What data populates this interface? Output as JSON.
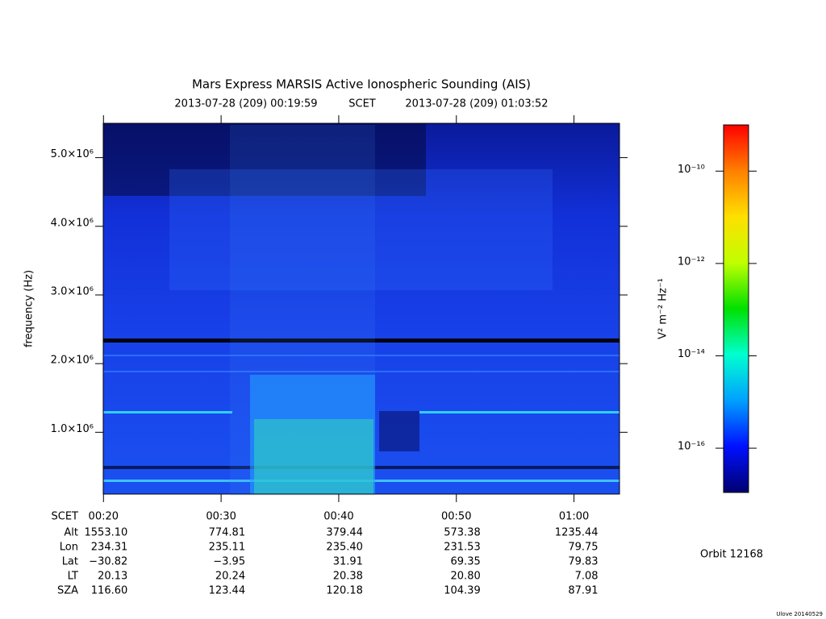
{
  "chart_data": {
    "type": "spectrogram",
    "title": "Mars Express MARSIS Active Ionospheric Sounding (AIS)",
    "subtitle": {
      "start": "2013-07-28 (209) 00:19:59",
      "scale": "SCET",
      "end": "2013-07-28 (209) 01:03:52"
    },
    "y_label": "frequency (Hz)",
    "ylim": [
      100000,
      5500000
    ],
    "yticks": [
      {
        "value": 1000000,
        "label": "1.0×10⁶"
      },
      {
        "value": 2000000,
        "label": "2.0×10⁶"
      },
      {
        "value": 3000000,
        "label": "3.0×10⁶"
      },
      {
        "value": 4000000,
        "label": "4.0×10⁶"
      },
      {
        "value": 5000000,
        "label": "5.0×10⁶"
      }
    ],
    "x_label": "SCET",
    "xlim": [
      19.98,
      63.87
    ],
    "xticks": [
      {
        "value": 20,
        "label": "00:20"
      },
      {
        "value": 30,
        "label": "00:30"
      },
      {
        "value": 40,
        "label": "00:40"
      },
      {
        "value": 50,
        "label": "00:50"
      },
      {
        "value": 60,
        "label": "01:00"
      }
    ],
    "ephemeris": [
      {
        "label": "Alt",
        "values": [
          "1553.10",
          "774.81",
          "379.44",
          "573.38",
          "1235.44"
        ]
      },
      {
        "label": "Lon",
        "values": [
          "234.31",
          "235.11",
          "235.40",
          "231.53",
          "79.75"
        ]
      },
      {
        "label": "Lat",
        "values": [
          "−30.82",
          "−3.95",
          "31.91",
          "69.35",
          "79.83"
        ]
      },
      {
        "label": "LT",
        "values": [
          "20.13",
          "20.24",
          "20.38",
          "20.80",
          "7.08"
        ]
      },
      {
        "label": "SZA",
        "values": [
          "116.60",
          "123.44",
          "120.18",
          "104.39",
          "87.91"
        ]
      }
    ],
    "colorbar": {
      "label": "V² m⁻² Hz⁻¹",
      "log_scale": true,
      "zlim": [
        1.1e-17,
        1e-09
      ],
      "zticks": [
        {
          "value": 1e-10,
          "label": "10⁻¹⁰"
        },
        {
          "value": 1e-12,
          "label": "10⁻¹²"
        },
        {
          "value": 1e-14,
          "label": "10⁻¹⁴"
        },
        {
          "value": 1e-16,
          "label": "10⁻¹⁶"
        }
      ],
      "colormap": [
        "#000070",
        "#0010ff",
        "#00a0ff",
        "#00ffd0",
        "#00e000",
        "#c0ff00",
        "#ffe000",
        "#ff8000",
        "#ff0000"
      ]
    },
    "orbit": "Orbit 12168",
    "footer": "Ulove 20140529"
  }
}
